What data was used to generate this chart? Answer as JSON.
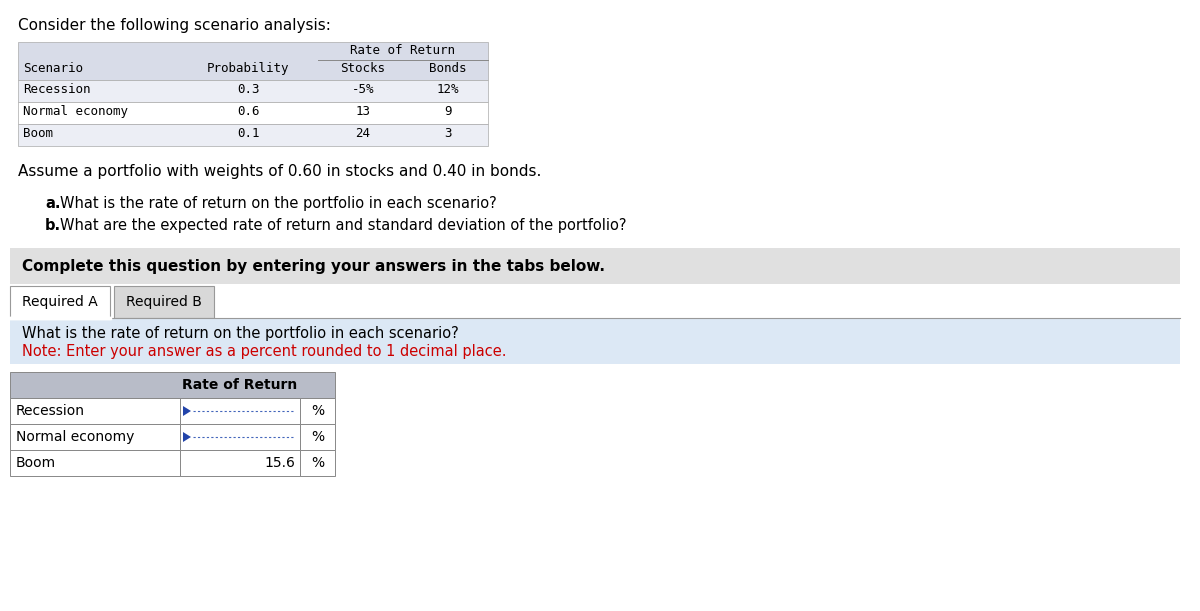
{
  "title": "Consider the following scenario analysis:",
  "top_table": {
    "header_row": [
      "Scenario",
      "Probability",
      "Stocks",
      "Bonds"
    ],
    "subheader": "Rate of Return",
    "rows": [
      [
        "Recession",
        "0.3",
        "-5%",
        "12%"
      ],
      [
        "Normal economy",
        "0.6",
        "13",
        "9"
      ],
      [
        "Boom",
        "0.1",
        "24",
        "3"
      ]
    ],
    "header_bg": "#d8dce8",
    "row_bg_alt": "#eceef5",
    "row_bg_normal": "#ffffff"
  },
  "assumption_text": "Assume a portfolio with weights of 0.60 in stocks and 0.40 in bonds.",
  "questions": [
    {
      "bold": "a.",
      "text": " What is the rate of return on the portfolio in each scenario?"
    },
    {
      "bold": "b.",
      "text": " What are the expected rate of return and standard deviation of the portfolio?"
    }
  ],
  "complete_text": "Complete this question by entering your answers in the tabs below.",
  "complete_bg": "#e0e0e0",
  "tab_active": "Required A",
  "tab_inactive": "Required B",
  "question_section_bg": "#dce8f5",
  "question_text": "What is the rate of return on the portfolio in each scenario?",
  "note_text": "Note: Enter your answer as a percent rounded to 1 decimal place.",
  "note_color": "#cc0000",
  "bottom_table": {
    "header": "Rate of Return",
    "rows": [
      {
        "label": "Recession",
        "value": "",
        "has_cursor": true
      },
      {
        "label": "Normal economy",
        "value": "",
        "has_cursor": true
      },
      {
        "label": "Boom",
        "value": "15.6",
        "has_cursor": false
      }
    ],
    "header_bg": "#b8bcc8",
    "border_color": "#888888"
  },
  "bg_color": "#ffffff",
  "text_color": "#000000"
}
